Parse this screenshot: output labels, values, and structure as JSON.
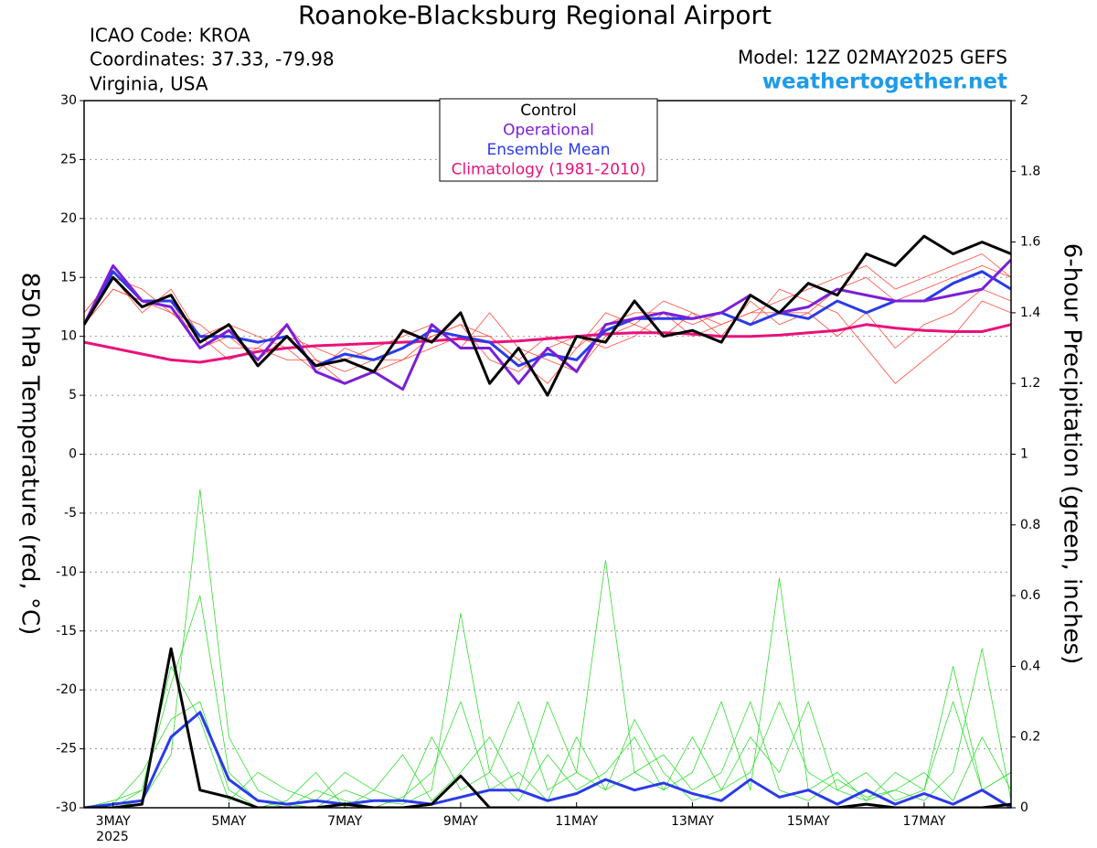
{
  "chart_data": {
    "type": "line",
    "title": "Roanoke-Blacksburg Regional Airport",
    "info_left": [
      "ICAO Code: KROA",
      "Coordinates: 37.33, -79.98",
      "Virginia, USA"
    ],
    "model": "Model: 12Z 02MAY2025 GEFS",
    "site": "weathertogether.net",
    "ylabel": "850 hPa Temperature (red, °C)",
    "y2label": "6-hour Precipitation (green, inches)",
    "year_label": "2025",
    "x": [
      2.5,
      3,
      3.5,
      4,
      4.5,
      5,
      5.5,
      6,
      6.5,
      7,
      7.5,
      8,
      8.5,
      9,
      9.5,
      10,
      10.5,
      11,
      11.5,
      12,
      12.5,
      13,
      13.5,
      14,
      14.5,
      15,
      15.5,
      16,
      16.5,
      17,
      17.5,
      18,
      18.5
    ],
    "xlim": [
      2.5,
      18.5
    ],
    "xticks": [
      {
        "value": 3,
        "label": "3MAY"
      },
      {
        "value": 5,
        "label": "5MAY"
      },
      {
        "value": 7,
        "label": "7MAY"
      },
      {
        "value": 9,
        "label": "9MAY"
      },
      {
        "value": 11,
        "label": "11MAY"
      },
      {
        "value": 13,
        "label": "13MAY"
      },
      {
        "value": 15,
        "label": "15MAY"
      },
      {
        "value": 17,
        "label": "17MAY"
      }
    ],
    "ylim": [
      -30,
      30
    ],
    "yticks": [
      -30,
      -25,
      -20,
      -15,
      -10,
      -5,
      0,
      5,
      10,
      15,
      20,
      25,
      30
    ],
    "y2lim": [
      0,
      2
    ],
    "y2ticks": [
      0,
      0.2,
      0.4,
      0.6,
      0.8,
      1,
      1.2,
      1.4,
      1.6,
      1.8,
      2
    ],
    "grid": true,
    "series": [
      {
        "color": "#ff4a3a",
        "line_width": 0.8,
        "values": [
          12,
          15,
          14,
          12,
          11,
          9,
          9,
          8,
          8,
          6,
          7,
          8,
          10,
          11,
          10,
          8,
          6,
          9,
          11,
          12,
          12,
          10,
          11,
          12,
          13,
          14,
          15,
          16,
          14,
          15,
          16,
          17,
          15
        ]
      },
      {
        "color": "#ff4a3a",
        "line_width": 0.8,
        "values": [
          11,
          14,
          13,
          13,
          9,
          10,
          8,
          10,
          9,
          8,
          9,
          10,
          11,
          9,
          12,
          9,
          8,
          7,
          10,
          11,
          10,
          12,
          10,
          13,
          11,
          12,
          10,
          12,
          9,
          11,
          12,
          14,
          13
        ]
      },
      {
        "color": "#ff4a3a",
        "line_width": 0.8,
        "values": [
          12,
          15,
          12,
          14,
          10,
          11,
          10,
          9,
          7,
          9,
          8,
          9,
          10,
          11,
          8,
          7,
          9,
          10,
          9,
          10,
          12,
          11,
          12,
          11,
          14,
          13,
          12,
          9,
          6,
          8,
          10,
          13,
          12
        ]
      },
      {
        "color": "#ff4a3a",
        "line_width": 0.8,
        "values": [
          11,
          14,
          13,
          12,
          10,
          8,
          9,
          11,
          8,
          7,
          8,
          8,
          9,
          10,
          10,
          8,
          10,
          9,
          12,
          11,
          13,
          12,
          11,
          12,
          12,
          12,
          14,
          15,
          13,
          14,
          15,
          16,
          15
        ]
      },
      {
        "color": "#33dd33",
        "line_width": 0.8,
        "axis": "y2",
        "values": [
          0,
          0,
          0.05,
          0.35,
          0.6,
          0.1,
          0.02,
          0,
          0.05,
          0.02,
          0,
          0.03,
          0.1,
          0.3,
          0.05,
          0.1,
          0.02,
          0.2,
          0.05,
          0.1,
          0.15,
          0.05,
          0.1,
          0.3,
          0.05,
          0.02,
          0.08,
          0.03,
          0.05,
          0.1,
          0.02,
          0.2,
          0.05
        ]
      },
      {
        "color": "#33dd33",
        "line_width": 0.8,
        "axis": "y2",
        "values": [
          0,
          0.01,
          0.1,
          0.25,
          0.3,
          0.05,
          0,
          0.02,
          0.1,
          0,
          0.05,
          0.15,
          0.02,
          0.1,
          0.2,
          0.05,
          0.3,
          0.1,
          0.7,
          0.1,
          0.05,
          0.2,
          0.05,
          0.1,
          0.3,
          0.1,
          0.05,
          0.02,
          0.1,
          0.05,
          0.4,
          0.05,
          0.1
        ]
      },
      {
        "color": "#33dd33",
        "line_width": 0.8,
        "axis": "y2",
        "values": [
          0,
          0,
          0.02,
          0.15,
          0.9,
          0.2,
          0.05,
          0.01,
          0,
          0.05,
          0.02,
          0.01,
          0.05,
          0.55,
          0.1,
          0.02,
          0.15,
          0.05,
          0.1,
          0.2,
          0.05,
          0.1,
          0.3,
          0.05,
          0.65,
          0.05,
          0.1,
          0.02,
          0.05,
          0.02,
          0.1,
          0.45,
          0.02
        ]
      },
      {
        "color": "#33dd33",
        "line_width": 0.8,
        "axis": "y2",
        "values": [
          0,
          0.02,
          0.05,
          0.4,
          0.25,
          0.02,
          0.1,
          0.05,
          0.02,
          0.1,
          0.05,
          0.02,
          0.2,
          0.05,
          0.1,
          0.3,
          0.05,
          0.1,
          0.05,
          0.25,
          0.1,
          0.02,
          0.05,
          0.2,
          0.1,
          0.3,
          0.05,
          0.1,
          0.02,
          0.05,
          0.3,
          0.05,
          0.1
        ]
      },
      {
        "color": "#2a3bea",
        "line_width": 3,
        "axis": "y2",
        "values": [
          0,
          0.01,
          0.02,
          0.2,
          0.27,
          0.08,
          0.02,
          0.01,
          0.02,
          0.01,
          0.02,
          0.02,
          0.01,
          0.03,
          0.05,
          0.05,
          0.02,
          0.04,
          0.08,
          0.05,
          0.07,
          0.04,
          0.02,
          0.08,
          0.03,
          0.05,
          0.01,
          0.05,
          0.01,
          0.04,
          0.01,
          0.05,
          0
        ]
      },
      {
        "color": "#000000",
        "line_width": 3,
        "axis": "y2",
        "values": [
          0,
          0,
          0.01,
          0.45,
          0.05,
          0.03,
          0,
          0,
          0,
          0.01,
          0,
          0,
          0.01,
          0.09,
          0,
          0,
          0,
          0,
          0,
          0,
          0,
          0,
          0,
          0,
          0,
          0,
          0,
          0.01,
          0,
          0,
          0,
          0,
          0.01
        ]
      },
      {
        "name": "Climatology (1981-2010)",
        "color": "#e8127c",
        "line_width": 3,
        "values": [
          9.5,
          9,
          8.5,
          8,
          7.8,
          8.2,
          8.7,
          9,
          9.2,
          9.3,
          9.4,
          9.5,
          9.6,
          9.8,
          9.5,
          9.6,
          9.8,
          10,
          10.2,
          10.3,
          10.3,
          10.2,
          10,
          10,
          10.1,
          10.3,
          10.5,
          11,
          10.7,
          10.5,
          10.4,
          10.4,
          11
        ]
      },
      {
        "name": "Ensemble Mean",
        "color": "#2a3bea",
        "line_width": 3,
        "values": [
          11,
          15.5,
          13,
          13,
          10,
          10,
          9.5,
          10,
          7.5,
          8.5,
          8,
          9,
          10.5,
          10,
          9.5,
          7.5,
          8.5,
          8,
          10.5,
          11.5,
          11.5,
          11.5,
          12,
          11,
          12,
          11.5,
          13,
          12,
          13,
          13,
          14.5,
          15.5,
          14
        ]
      },
      {
        "name": "Operational",
        "color": "#7b1fd8",
        "line_width": 3,
        "values": [
          11,
          16,
          13,
          12.5,
          9,
          10.5,
          8,
          11,
          7,
          6,
          7,
          5.5,
          11,
          9,
          9,
          6,
          9,
          7,
          11,
          11.5,
          12,
          11.5,
          12,
          13.5,
          12,
          12.5,
          14,
          13.5,
          13,
          13,
          13.5,
          14,
          16.5
        ]
      },
      {
        "name": "Control",
        "color": "#000000",
        "line_width": 3,
        "values": [
          11,
          15,
          12.5,
          13.5,
          9.5,
          11,
          7.5,
          10,
          7.5,
          8,
          7,
          10.5,
          9.5,
          12,
          6,
          9,
          5,
          10,
          9.5,
          13,
          10,
          10.5,
          9.5,
          13.5,
          12,
          14.5,
          13.5,
          17,
          16,
          18.5,
          17,
          18,
          17
        ]
      }
    ]
  }
}
